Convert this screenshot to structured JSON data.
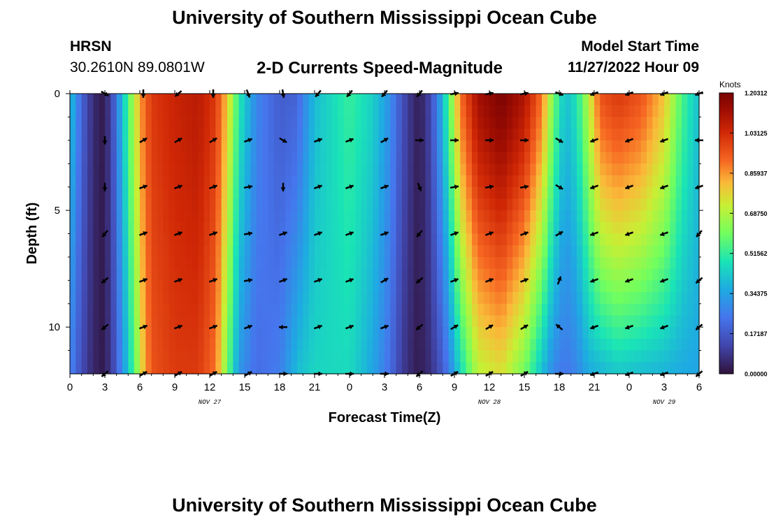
{
  "header": {
    "title": "University of Southern Mississippi Ocean Cube",
    "station": "HRSN",
    "coordinates": "30.2610N  89.0801W",
    "chart_title": "2-D Currents Speed-Magnitude",
    "model_start_label": "Model Start Time",
    "model_start_value": "11/27/2022 Hour 09"
  },
  "footer": {
    "title": "University of Southern Mississippi Ocean Cube"
  },
  "colors": {
    "arrow": "#000000",
    "axis": "#000000"
  },
  "chart_data": {
    "type": "heatmap",
    "title": "2-D Currents Speed-Magnitude",
    "xlabel": "Forecast Time(Z)",
    "ylabel": "Depth (ft)",
    "x_ticks": [
      {
        "hour": 0,
        "label": "0"
      },
      {
        "hour": 3,
        "label": "3"
      },
      {
        "hour": 6,
        "label": "6"
      },
      {
        "hour": 9,
        "label": "9"
      },
      {
        "hour": 12,
        "label": "12"
      },
      {
        "hour": 15,
        "label": "15"
      },
      {
        "hour": 18,
        "label": "18"
      },
      {
        "hour": 21,
        "label": "21"
      },
      {
        "hour": 24,
        "label": "0"
      },
      {
        "hour": 27,
        "label": "3"
      },
      {
        "hour": 30,
        "label": "6"
      },
      {
        "hour": 33,
        "label": "9"
      },
      {
        "hour": 36,
        "label": "12"
      },
      {
        "hour": 39,
        "label": "15"
      },
      {
        "hour": 42,
        "label": "18"
      },
      {
        "hour": 45,
        "label": "21"
      },
      {
        "hour": 48,
        "label": "0"
      },
      {
        "hour": 51,
        "label": "3"
      },
      {
        "hour": 54,
        "label": "6"
      }
    ],
    "x_range": [
      0,
      54
    ],
    "date_labels": [
      {
        "hour": 12,
        "label": "NOV 27"
      },
      {
        "hour": 36,
        "label": "NOV 28"
      },
      {
        "hour": 51,
        "label": "NOV 29"
      }
    ],
    "y_ticks": [
      {
        "depth": 0,
        "label": "0"
      },
      {
        "depth": 5,
        "label": "5"
      },
      {
        "depth": 10,
        "label": "10"
      }
    ],
    "y_range": [
      0,
      12
    ],
    "colorbar": {
      "title": "Knots",
      "range": [
        0,
        1.203125
      ],
      "tick_labels": [
        "1.20312",
        "1.03125",
        "0.85937",
        "0.68750",
        "0.51562",
        "0.34375",
        "0.17187",
        "0.00000"
      ],
      "tick_values": [
        1.203125,
        1.03125,
        0.859375,
        0.6875,
        0.515625,
        0.34375,
        0.171875,
        0.0
      ]
    },
    "speed_profile": {
      "hours": [
        0,
        1,
        2,
        2.7,
        3.5,
        4.5,
        5.5,
        6.3,
        7,
        9,
        11,
        12.5,
        13.5,
        14.5,
        16,
        18,
        19.5,
        21,
        24,
        26,
        27.5,
        28.5,
        29.7,
        30.5,
        31.5,
        32.5,
        33.5,
        35,
        37,
        39,
        40.5,
        41.5,
        42.5,
        43.5,
        44.5,
        45.5,
        47,
        49,
        51,
        52.5,
        54
      ],
      "surface": [
        0.42,
        0.2,
        0.06,
        0.02,
        0.1,
        0.4,
        0.7,
        0.9,
        1.0,
        1.05,
        1.08,
        1.0,
        0.8,
        0.5,
        0.28,
        0.18,
        0.2,
        0.4,
        0.52,
        0.44,
        0.3,
        0.15,
        0.04,
        0.06,
        0.25,
        0.55,
        0.9,
        1.12,
        1.2,
        1.1,
        0.9,
        0.6,
        0.4,
        0.48,
        0.7,
        0.95,
        1.0,
        0.95,
        0.8,
        0.55,
        0.4
      ],
      "bottom": [
        0.28,
        0.14,
        0.05,
        0.02,
        0.08,
        0.3,
        0.55,
        0.8,
        0.95,
        1.0,
        1.0,
        0.9,
        0.6,
        0.32,
        0.22,
        0.26,
        0.4,
        0.45,
        0.46,
        0.35,
        0.22,
        0.1,
        0.03,
        0.04,
        0.12,
        0.25,
        0.45,
        0.7,
        0.75,
        0.6,
        0.4,
        0.28,
        0.24,
        0.28,
        0.36,
        0.38,
        0.42,
        0.4,
        0.38,
        0.36,
        0.35
      ]
    },
    "arrows": {
      "hours": [
        3,
        6.3,
        9.3,
        12.3,
        15.3,
        18.3,
        21.3,
        24,
        27,
        30,
        33,
        36,
        39,
        42,
        45,
        48,
        51,
        54
      ],
      "depths": [
        0,
        2,
        4,
        6,
        8,
        10,
        12
      ],
      "directions_deg": [
        [
          120,
          180,
          230,
          180,
          160,
          170,
          220,
          220,
          220,
          220,
          80,
          80,
          80,
          110,
          250,
          250,
          250,
          250
        ],
        [
          180,
          60,
          60,
          60,
          70,
          120,
          70,
          70,
          60,
          90,
          90,
          90,
          90,
          120,
          250,
          250,
          250,
          270
        ],
        [
          180,
          70,
          70,
          70,
          80,
          180,
          70,
          70,
          70,
          160,
          80,
          80,
          80,
          120,
          250,
          250,
          250,
          250
        ],
        [
          220,
          70,
          70,
          70,
          80,
          70,
          70,
          70,
          70,
          220,
          70,
          70,
          70,
          60,
          250,
          250,
          250,
          220
        ],
        [
          230,
          70,
          70,
          70,
          80,
          70,
          70,
          70,
          60,
          230,
          70,
          70,
          70,
          20,
          250,
          250,
          250,
          230
        ],
        [
          230,
          70,
          70,
          70,
          70,
          270,
          70,
          70,
          70,
          230,
          60,
          60,
          60,
          310,
          250,
          250,
          250,
          230
        ],
        [
          230,
          60,
          60,
          60,
          60,
          90,
          90,
          90,
          90,
          230,
          60,
          60,
          60,
          90,
          250,
          250,
          250,
          230
        ]
      ]
    }
  }
}
